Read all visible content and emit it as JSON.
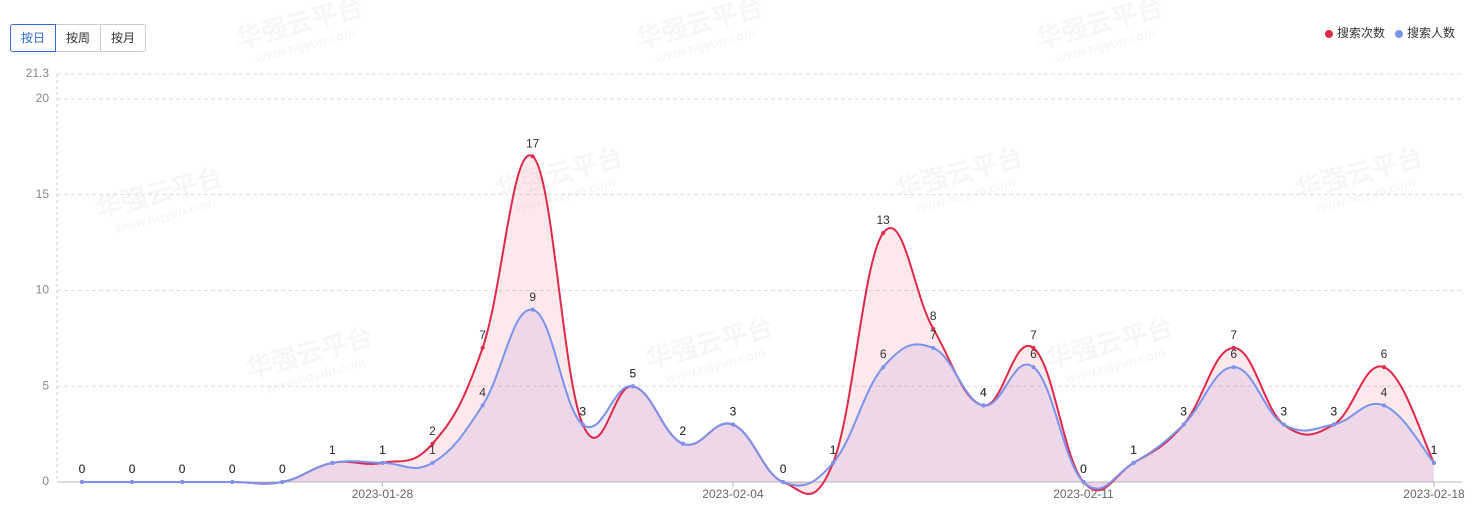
{
  "buttons": [
    "按日",
    "按周",
    "按月"
  ],
  "watermark": [
    "华强云平台",
    "www.hqyun.com"
  ],
  "chart_data": {
    "type": "line",
    "smooth": true,
    "area": true,
    "categories": [
      null,
      null,
      null,
      null,
      null,
      null,
      "2023-01-28",
      null,
      null,
      null,
      null,
      null,
      null,
      "2023-02-04",
      null,
      null,
      null,
      null,
      null,
      null,
      "2023-02-11",
      null,
      null,
      null,
      null,
      null,
      null,
      "2023-02-18"
    ],
    "series": [
      {
        "name": "搜索次数",
        "color": "#e0294a",
        "values": [
          0,
          0,
          0,
          0,
          0,
          1,
          1,
          2,
          7,
          17,
          3,
          5,
          2,
          3,
          0,
          1,
          13,
          8,
          4,
          7,
          0,
          1,
          3,
          7,
          3,
          3,
          6,
          1
        ]
      },
      {
        "name": "搜索人数",
        "color": "#7b93ec",
        "values": [
          0,
          0,
          0,
          0,
          0,
          1,
          1,
          1,
          4,
          9,
          3,
          5,
          2,
          3,
          0,
          1,
          6,
          7,
          4,
          6,
          0,
          1,
          3,
          6,
          3,
          3,
          4,
          1
        ]
      }
    ],
    "ylim": [
      0,
      21.3
    ],
    "yticks": [
      0,
      5,
      10,
      15,
      20,
      21.3
    ],
    "grid": true,
    "legend": "top-right"
  }
}
